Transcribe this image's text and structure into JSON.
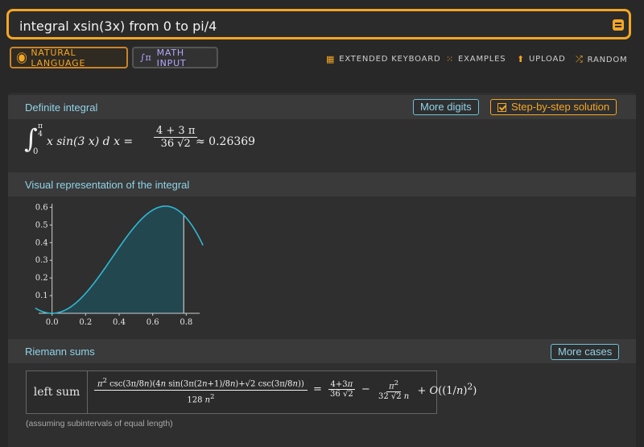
{
  "search": {
    "query": "integral xsin(3x) from 0 to pi/4"
  },
  "modes": {
    "natural": "NATURAL LANGUAGE",
    "math": "MATH INPUT"
  },
  "toolbar": {
    "keyboard": "EXTENDED KEYBOARD",
    "examples": "EXAMPLES",
    "upload": "UPLOAD",
    "random": "RANDOM"
  },
  "pods": {
    "definite": {
      "title": "Definite integral",
      "more_digits": "More digits",
      "step": "Step-by-step solution",
      "integrand": "x sin(3 x) d x =",
      "lower": "0",
      "upper_num": "π",
      "upper_den": "4",
      "result_num": "4 + 3 π",
      "result_den": "36 √2",
      "approx": "≈ 0.26369"
    },
    "visual": {
      "title": "Visual representation of the integral",
      "chart_data": {
        "type": "area",
        "function": "x sin(3x)",
        "x": [
          -0.1,
          0.0,
          0.1,
          0.2,
          0.3,
          0.4,
          0.5,
          0.6,
          0.7,
          0.785,
          0.8,
          0.9
        ],
        "y": [
          0.03,
          0.0,
          0.03,
          0.11,
          0.23,
          0.37,
          0.5,
          0.58,
          0.6,
          0.56,
          0.54,
          0.39
        ],
        "shade_from": 0,
        "shade_to": 0.785,
        "xticks": [
          "0.0",
          "0.2",
          "0.4",
          "0.6",
          "0.8"
        ],
        "yticks": [
          "0.1",
          "0.2",
          "0.3",
          "0.4",
          "0.5",
          "0.6"
        ],
        "xlim": [
          -0.08,
          0.88
        ],
        "ylim": [
          0,
          0.62
        ],
        "colors": {
          "curve": "#2fb8d4",
          "fill": "#23474f"
        }
      }
    },
    "riemann": {
      "title": "Riemann sums",
      "more_cases": "More cases",
      "row_label": "left sum",
      "note": "(assuming subintervals of equal length)"
    }
  }
}
